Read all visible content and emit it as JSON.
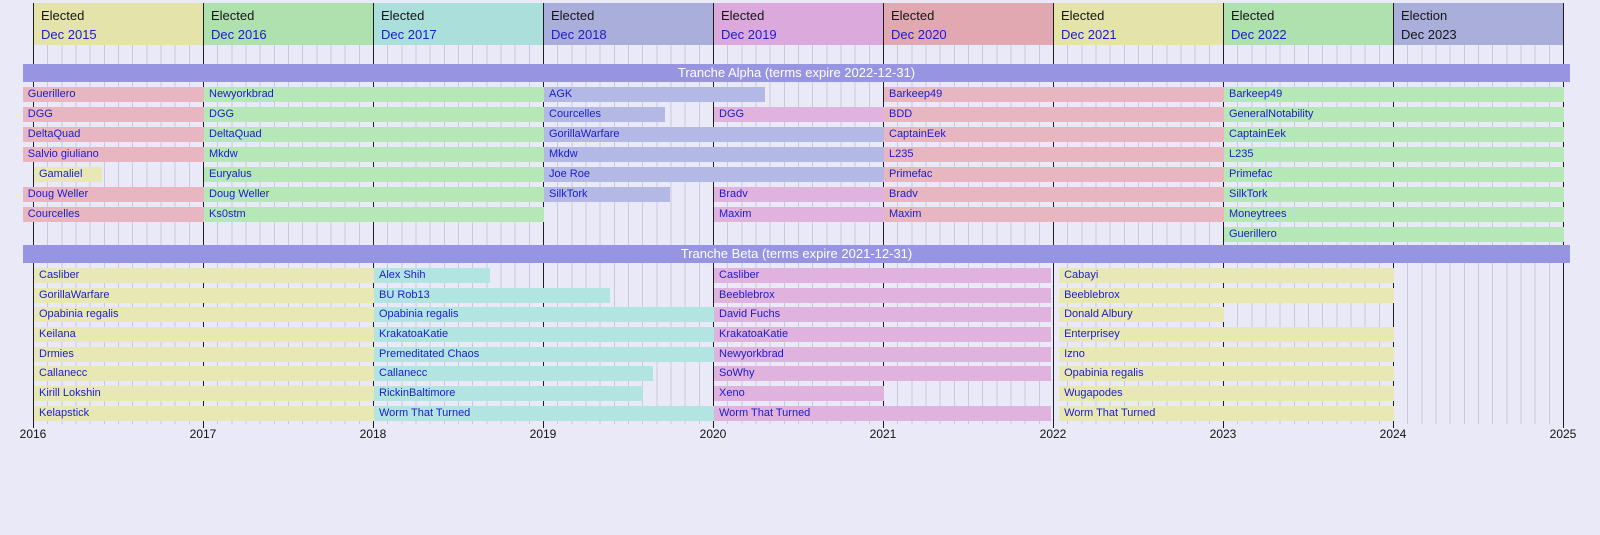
{
  "page_background": "#e9e9f8",
  "colors": {
    "header": {
      "yellow": "#e4e4aa",
      "green": "#aee1ae",
      "teal": "#aadfdb",
      "blue": "#aaaedb",
      "magenta": "#dba9db",
      "salmon": "#e1a8b2"
    },
    "bar": {
      "yellow": "#e8e8b4",
      "green": "#b6e7b6",
      "teal": "#b2e5e1",
      "blue": "#b4b8e4",
      "magenta": "#e0b2de",
      "salmon": "#e8b6c0"
    },
    "tranche_band": "#9795e2",
    "link_text": "#1b1bd1",
    "gridline": "#c9c9dc",
    "yearline": "#1d1d1d"
  },
  "chart_data": {
    "type": "timeline",
    "title": "Arbitration Committee membership timeline",
    "x_axis": {
      "unit": "year",
      "start": 2016,
      "end": 2025,
      "tick_labels": [
        "2016",
        "2017",
        "2018",
        "2019",
        "2020",
        "2021",
        "2022",
        "2023",
        "2024",
        "2025"
      ],
      "minor_grid": "monthly"
    },
    "election_headers": [
      {
        "line1": "Elected",
        "line2": "Dec 2015",
        "color": "yellow",
        "span_start": 2016,
        "year_is_link": true
      },
      {
        "line1": "Elected",
        "line2": "Dec 2016",
        "color": "green",
        "span_start": 2017,
        "year_is_link": true
      },
      {
        "line1": "Elected",
        "line2": "Dec 2017",
        "color": "teal",
        "span_start": 2018,
        "year_is_link": true
      },
      {
        "line1": "Elected",
        "line2": "Dec 2018",
        "color": "blue",
        "span_start": 2019,
        "year_is_link": true
      },
      {
        "line1": "Elected",
        "line2": "Dec 2019",
        "color": "magenta",
        "span_start": 2020,
        "year_is_link": true
      },
      {
        "line1": "Elected",
        "line2": "Dec 2020",
        "color": "salmon",
        "span_start": 2021,
        "year_is_link": true
      },
      {
        "line1": "Elected",
        "line2": "Dec 2021",
        "color": "yellow",
        "span_start": 2022,
        "year_is_link": true
      },
      {
        "line1": "Elected",
        "line2": "Dec 2022",
        "color": "green",
        "span_start": 2023,
        "year_is_link": true
      },
      {
        "line1": "Election",
        "line2": "Dec 2023",
        "color": "blue",
        "span_start": 2024,
        "year_is_link": false
      }
    ],
    "tranches": [
      {
        "title": "Tranche Alpha (terms expire 2022-12-31)",
        "rows": [
          [
            {
              "label": "Guerillero",
              "color": "salmon",
              "from": 2015.94,
              "to": 2017
            },
            {
              "label": "Newyorkbrad",
              "color": "green",
              "from": 2017,
              "to": 2019
            },
            {
              "label": "AGK",
              "color": "blue",
              "from": 2019,
              "to": 2020.3
            },
            {
              "label": "Barkeep49",
              "color": "salmon",
              "from": 2021,
              "to": 2023
            },
            {
              "label": "Barkeep49",
              "color": "green",
              "from": 2023,
              "to": 2025
            }
          ],
          [
            {
              "label": "DGG",
              "color": "salmon",
              "from": 2015.94,
              "to": 2017
            },
            {
              "label": "DGG",
              "color": "green",
              "from": 2017,
              "to": 2019
            },
            {
              "label": "Courcelles",
              "color": "blue",
              "from": 2019,
              "to": 2019.71
            },
            {
              "label": "DGG",
              "color": "magenta",
              "from": 2020,
              "to": 2021
            },
            {
              "label": "BDD",
              "color": "salmon",
              "from": 2021,
              "to": 2023
            },
            {
              "label": "GeneralNotability",
              "color": "green",
              "from": 2023,
              "to": 2025
            }
          ],
          [
            {
              "label": "DeltaQuad",
              "color": "salmon",
              "from": 2015.94,
              "to": 2017
            },
            {
              "label": "DeltaQuad",
              "color": "green",
              "from": 2017,
              "to": 2019
            },
            {
              "label": "GorillaWarfare",
              "color": "blue",
              "from": 2019,
              "to": 2021
            },
            {
              "label": "CaptainEek",
              "color": "salmon",
              "from": 2021,
              "to": 2023
            },
            {
              "label": "CaptainEek",
              "color": "green",
              "from": 2023,
              "to": 2025
            }
          ],
          [
            {
              "label": "Salvio giuliano",
              "color": "salmon",
              "from": 2015.94,
              "to": 2017
            },
            {
              "label": "Mkdw",
              "color": "green",
              "from": 2017,
              "to": 2019
            },
            {
              "label": "Mkdw",
              "color": "blue",
              "from": 2019,
              "to": 2021
            },
            {
              "label": "L235",
              "color": "salmon",
              "from": 2021,
              "to": 2023
            },
            {
              "label": "L235",
              "color": "green",
              "from": 2023,
              "to": 2025
            }
          ],
          [
            {
              "label": "Gamaliel",
              "color": "yellow",
              "from": 2016,
              "to": 2016.4
            },
            {
              "label": "Euryalus",
              "color": "green",
              "from": 2017,
              "to": 2019
            },
            {
              "label": "Joe Roe",
              "color": "blue",
              "from": 2019,
              "to": 2021
            },
            {
              "label": "Primefac",
              "color": "salmon",
              "from": 2021,
              "to": 2023
            },
            {
              "label": "Primefac",
              "color": "green",
              "from": 2023,
              "to": 2025
            }
          ],
          [
            {
              "label": "Doug Weller",
              "color": "salmon",
              "from": 2015.94,
              "to": 2017
            },
            {
              "label": "Doug Weller",
              "color": "green",
              "from": 2017,
              "to": 2019
            },
            {
              "label": "SilkTork",
              "color": "blue",
              "from": 2019,
              "to": 2019.74
            },
            {
              "label": "Bradv",
              "color": "magenta",
              "from": 2020,
              "to": 2021
            },
            {
              "label": "Bradv",
              "color": "salmon",
              "from": 2021,
              "to": 2023
            },
            {
              "label": "SilkTork",
              "color": "green",
              "from": 2023,
              "to": 2025
            }
          ],
          [
            {
              "label": "Courcelles",
              "color": "salmon",
              "from": 2015.94,
              "to": 2017
            },
            {
              "label": "Ks0stm",
              "color": "green",
              "from": 2017,
              "to": 2019
            },
            {
              "label": "Maxim",
              "color": "magenta",
              "from": 2020,
              "to": 2021
            },
            {
              "label": "Maxim",
              "color": "salmon",
              "from": 2021,
              "to": 2023
            },
            {
              "label": "Moneytrees",
              "color": "green",
              "from": 2023,
              "to": 2025
            }
          ],
          [
            {
              "label": "Guerillero",
              "color": "green",
              "from": 2023,
              "to": 2025
            }
          ]
        ]
      },
      {
        "title": "Tranche Beta (terms expire 2021-12-31)",
        "rows": [
          [
            {
              "label": "Casliber",
              "color": "yellow",
              "from": 2016,
              "to": 2018
            },
            {
              "label": "Alex Shih",
              "color": "teal",
              "from": 2018,
              "to": 2018.68
            },
            {
              "label": "Casliber",
              "color": "magenta",
              "from": 2020,
              "to": 2021.98
            },
            {
              "label": "Cabayi",
              "color": "yellow",
              "from": 2022.03,
              "to": 2024
            }
          ],
          [
            {
              "label": "GorillaWarfare",
              "color": "yellow",
              "from": 2016,
              "to": 2018
            },
            {
              "label": "BU Rob13",
              "color": "teal",
              "from": 2018,
              "to": 2019.39
            },
            {
              "label": "Beeblebrox",
              "color": "magenta",
              "from": 2020,
              "to": 2021.98
            },
            {
              "label": "Beeblebrox",
              "color": "yellow",
              "from": 2022.03,
              "to": 2024
            }
          ],
          [
            {
              "label": "Opabinia regalis",
              "color": "yellow",
              "from": 2016,
              "to": 2018
            },
            {
              "label": "Opabinia regalis",
              "color": "teal",
              "from": 2018,
              "to": 2020
            },
            {
              "label": "David Fuchs",
              "color": "magenta",
              "from": 2020,
              "to": 2021.98
            },
            {
              "label": "Donald Albury",
              "color": "yellow",
              "from": 2022.03,
              "to": 2023
            }
          ],
          [
            {
              "label": "Keilana",
              "color": "yellow",
              "from": 2016,
              "to": 2018
            },
            {
              "label": "KrakatoaKatie",
              "color": "teal",
              "from": 2018,
              "to": 2020
            },
            {
              "label": "KrakatoaKatie",
              "color": "magenta",
              "from": 2020,
              "to": 2021.98
            },
            {
              "label": "Enterprisey",
              "color": "yellow",
              "from": 2022.03,
              "to": 2024
            }
          ],
          [
            {
              "label": "Drmies",
              "color": "yellow",
              "from": 2016,
              "to": 2018
            },
            {
              "label": "Premeditated Chaos",
              "color": "teal",
              "from": 2018,
              "to": 2020
            },
            {
              "label": "Newyorkbrad",
              "color": "magenta",
              "from": 2020,
              "to": 2021.98
            },
            {
              "label": "Izno",
              "color": "yellow",
              "from": 2022.03,
              "to": 2024
            }
          ],
          [
            {
              "label": "Callanecc",
              "color": "yellow",
              "from": 2016,
              "to": 2018
            },
            {
              "label": "Callanecc",
              "color": "teal",
              "from": 2018,
              "to": 2019.64
            },
            {
              "label": "SoWhy",
              "color": "magenta",
              "from": 2020,
              "to": 2021.98
            },
            {
              "label": "Opabinia regalis",
              "color": "yellow",
              "from": 2022.03,
              "to": 2024
            }
          ],
          [
            {
              "label": "Kirill Lokshin",
              "color": "yellow",
              "from": 2016,
              "to": 2018
            },
            {
              "label": "RickinBaltimore",
              "color": "teal",
              "from": 2018,
              "to": 2019.58
            },
            {
              "label": "Xeno",
              "color": "magenta",
              "from": 2020,
              "to": 2021
            },
            {
              "label": "Wugapodes",
              "color": "yellow",
              "from": 2022.03,
              "to": 2024
            }
          ],
          [
            {
              "label": "Kelapstick",
              "color": "yellow",
              "from": 2016,
              "to": 2018
            },
            {
              "label": "Worm That Turned",
              "color": "teal",
              "from": 2018,
              "to": 2020
            },
            {
              "label": "Worm That Turned",
              "color": "magenta",
              "from": 2020,
              "to": 2021.98
            },
            {
              "label": "Worm That Turned",
              "color": "yellow",
              "from": 2022.03,
              "to": 2024
            }
          ]
        ]
      }
    ]
  },
  "layout_note": "timeline bars; tranche alpha rows start y86.5 pitch 20, tranche beta rows start y268 pitch 19.67"
}
